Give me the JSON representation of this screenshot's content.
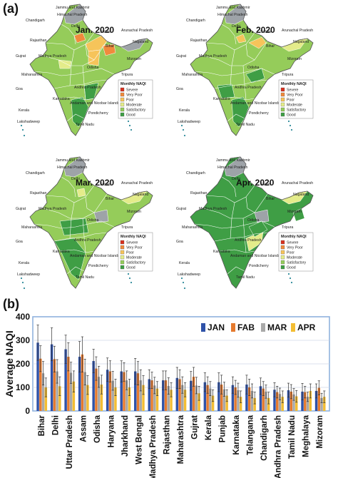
{
  "panel_a_label": "(a)",
  "panel_b_label": "(b)",
  "colors": {
    "severe": "#d7301f",
    "very_poor": "#f08a3c",
    "poor": "#f6c45a",
    "moderate": "#e4ec8a",
    "satisfactory": "#95cc5a",
    "good": "#3f9e45",
    "na": "#9ea3a8",
    "jan": "#2f52a8",
    "fab": "#e57a2e",
    "mar": "#a9a9a9",
    "apr": "#f3bd33"
  },
  "maps": [
    {
      "title": "Jan. 2020",
      "fill_base": "satisfactory"
    },
    {
      "title": "Feb. 2020",
      "fill_base": "satisfactory"
    },
    {
      "title": "Mar. 2020",
      "fill_base": "satisfactory"
    },
    {
      "title": "Apr. 2020",
      "fill_base": "good"
    }
  ],
  "map_labels": [
    "Jammu and Kashmir",
    "Himachal Pradesh",
    "Chandigarh",
    "Delhi",
    "Sikkim",
    "Arunachal Pradesh",
    "Nagaland",
    "Mizoram",
    "Bihar",
    "Rajasthan",
    "Gujrat",
    "Madhya Pradesh",
    "Tripura",
    "Maharashtra",
    "Odisha",
    "Andhra Pradesh",
    "Goa",
    "Karnataka",
    "Andaman and Nicobar Islands",
    "Pondicherry",
    "Kerala",
    "Lakshadweep",
    "Tamil Nadu"
  ],
  "legend": {
    "title": "Monthly NAQI",
    "items": [
      "Severe",
      "Very Poor",
      "Poor",
      "Moderate",
      "Satisfactory",
      "Good"
    ]
  },
  "chart_data": {
    "type": "bar",
    "ylabel": "Average NAQI",
    "ylim": [
      0,
      400
    ],
    "yticks": [
      0,
      100,
      200,
      300,
      400
    ],
    "categories": [
      "Bihar",
      "Delhi",
      "Uttar Pradesh",
      "Assam",
      "Odisha",
      "Haryana",
      "Jharkhand",
      "West Bengal",
      "Madhya Pradesh",
      "Rajasthan",
      "Maharashtra",
      "Gujrat",
      "Kerala",
      "Punjab",
      "Karnataka",
      "Telangana",
      "Chandigarh",
      "Andhra Pradesh",
      "Tamil Nadu",
      "Meghalaya",
      "Mizoram"
    ],
    "legend_position": "top-right",
    "series": [
      {
        "name": "JAN",
        "values": [
          290,
          283,
          262,
          230,
          212,
          175,
          168,
          168,
          135,
          130,
          140,
          128,
          122,
          122,
          110,
          112,
          105,
          90,
          88,
          82,
          85
        ],
        "errors": [
          75,
          70,
          60,
          65,
          50,
          50,
          45,
          55,
          40,
          40,
          45,
          40,
          40,
          40,
          35,
          40,
          35,
          30,
          30,
          35,
          30
        ]
      },
      {
        "name": "FAB",
        "values": [
          222,
          220,
          230,
          240,
          180,
          168,
          165,
          160,
          130,
          130,
          135,
          145,
          110,
          112,
          100,
          100,
          95,
          80,
          82,
          80,
          98
        ],
        "errors": [
          55,
          55,
          60,
          75,
          50,
          45,
          40,
          50,
          35,
          40,
          40,
          40,
          35,
          40,
          30,
          35,
          30,
          25,
          30,
          25,
          30
        ]
      },
      {
        "name": "MAR",
        "values": [
          160,
          168,
          162,
          165,
          145,
          128,
          130,
          130,
          108,
          106,
          110,
          108,
          95,
          92,
          88,
          85,
          82,
          72,
          70,
          60,
          55
        ],
        "errors": [
          50,
          50,
          45,
          55,
          45,
          40,
          40,
          45,
          35,
          35,
          35,
          35,
          30,
          30,
          30,
          30,
          28,
          25,
          25,
          20,
          20
        ]
      },
      {
        "name": "APR",
        "values": [
          100,
          105,
          125,
          110,
          112,
          100,
          100,
          110,
          95,
          90,
          90,
          75,
          65,
          65,
          60,
          55,
          55,
          60,
          62,
          85,
          60
        ],
        "errors": [
          40,
          40,
          45,
          40,
          40,
          35,
          35,
          40,
          30,
          30,
          30,
          30,
          25,
          25,
          25,
          25,
          25,
          25,
          25,
          30,
          25
        ]
      }
    ]
  }
}
